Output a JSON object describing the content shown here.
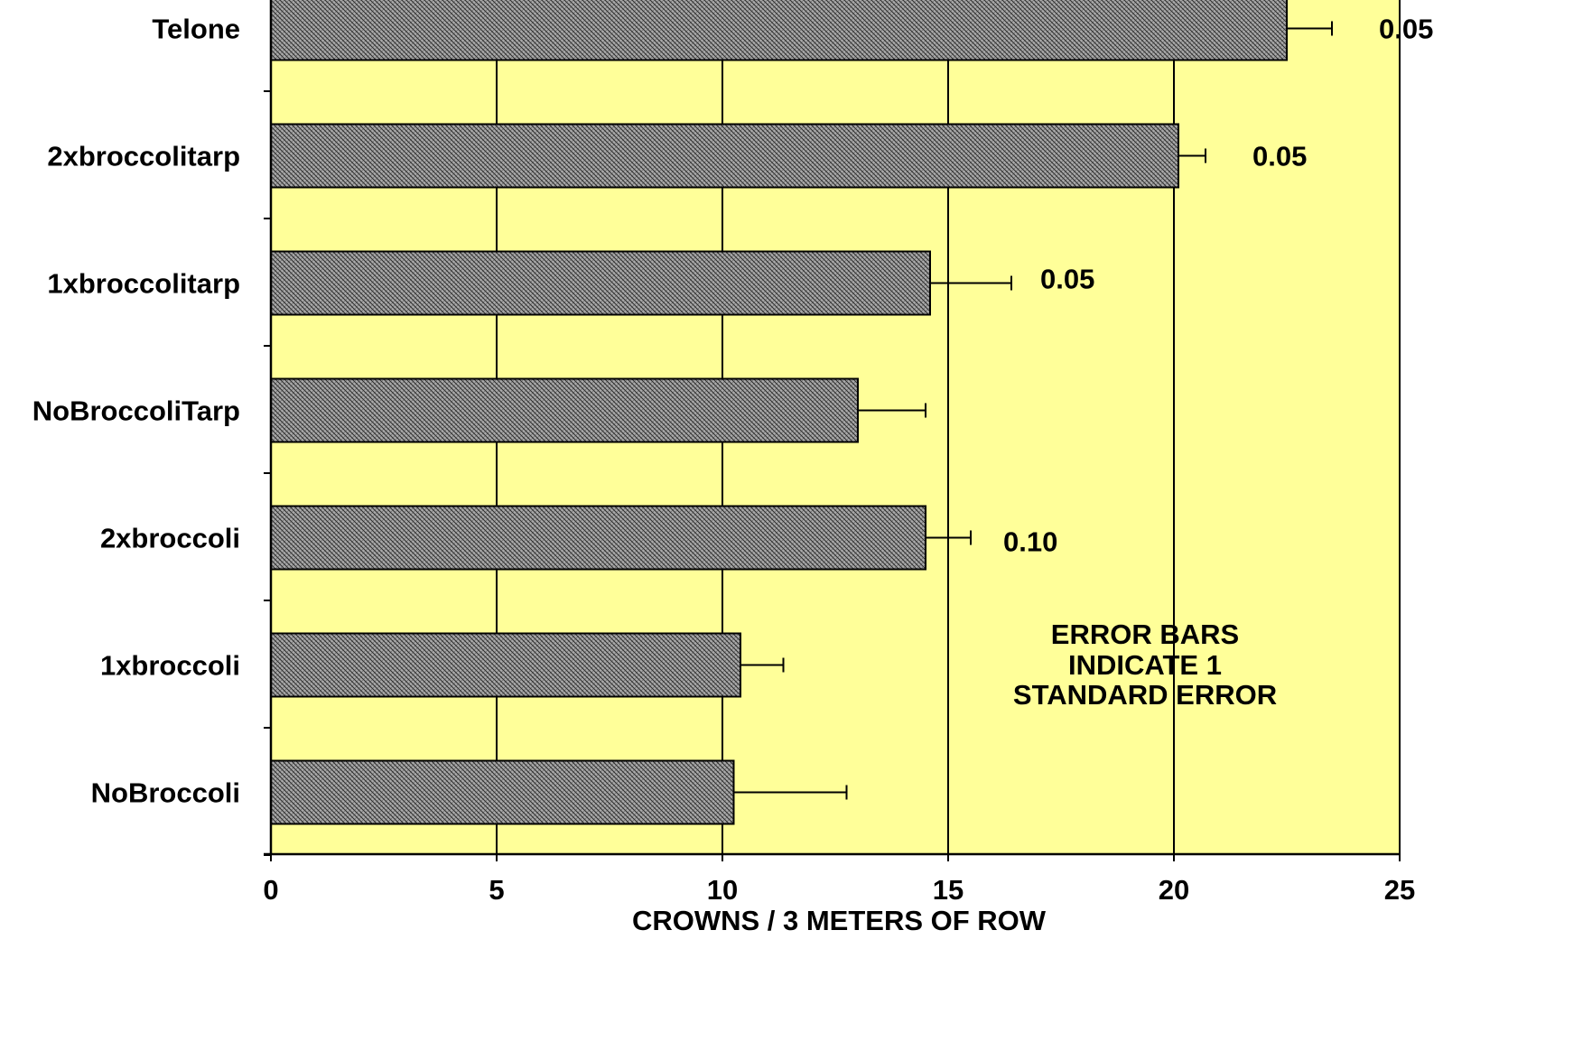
{
  "chart_data": {
    "type": "bar",
    "orientation": "horizontal",
    "categories": [
      "Telone",
      "2xbroccolitarp",
      "1xbroccolitarp",
      "NoBroccoliTarp",
      "2xbroccoli",
      "1xbroccoli",
      "NoBroccoli"
    ],
    "values": [
      22.5,
      20.1,
      14.6,
      13.0,
      14.5,
      10.4,
      10.25
    ],
    "errors": [
      1.0,
      0.6,
      1.8,
      1.5,
      1.0,
      0.95,
      2.5
    ],
    "significance_labels": [
      "0.05",
      "0.05",
      "0.05",
      "",
      "0.10",
      "",
      ""
    ],
    "xlabel": "CROWNS / 3 METERS OF ROW",
    "ylabel": "",
    "xlim": [
      0,
      25
    ],
    "xticks": [
      "0",
      "5",
      "10",
      "15",
      "20",
      "25"
    ],
    "grid": true,
    "annotation": [
      "ERROR BARS",
      "INDICATE 1",
      "STANDARD ERROR"
    ],
    "colors": {
      "plot_background": "#ffff99",
      "bar_fill": "#a9a9a9",
      "bar_hatch": "#2b2b2b",
      "line": "#000000"
    }
  }
}
